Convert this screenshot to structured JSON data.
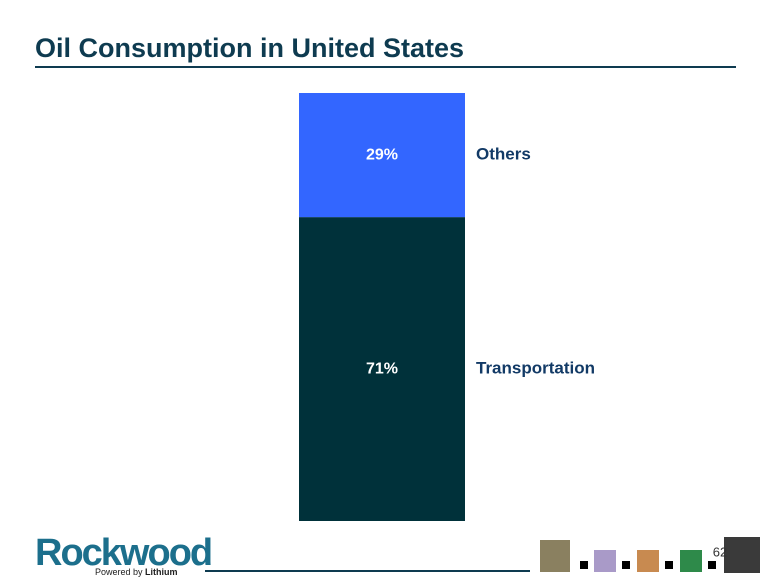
{
  "chart_data": {
    "type": "stacked-bar",
    "title": "Oil Consumption in United States",
    "categories": [
      null
    ],
    "series": [
      {
        "name": "Transportation",
        "color": "#00313a",
        "values": [
          71
        ],
        "value_labels": [
          "71%"
        ]
      },
      {
        "name": "Others",
        "color": "#3366ff",
        "values": [
          29
        ],
        "value_labels": [
          "29%"
        ]
      }
    ]
  },
  "footer": {
    "logo": "Rockwood",
    "tagline": "Powered by",
    "tagline_brand": "Lithium",
    "page_number": "62"
  }
}
